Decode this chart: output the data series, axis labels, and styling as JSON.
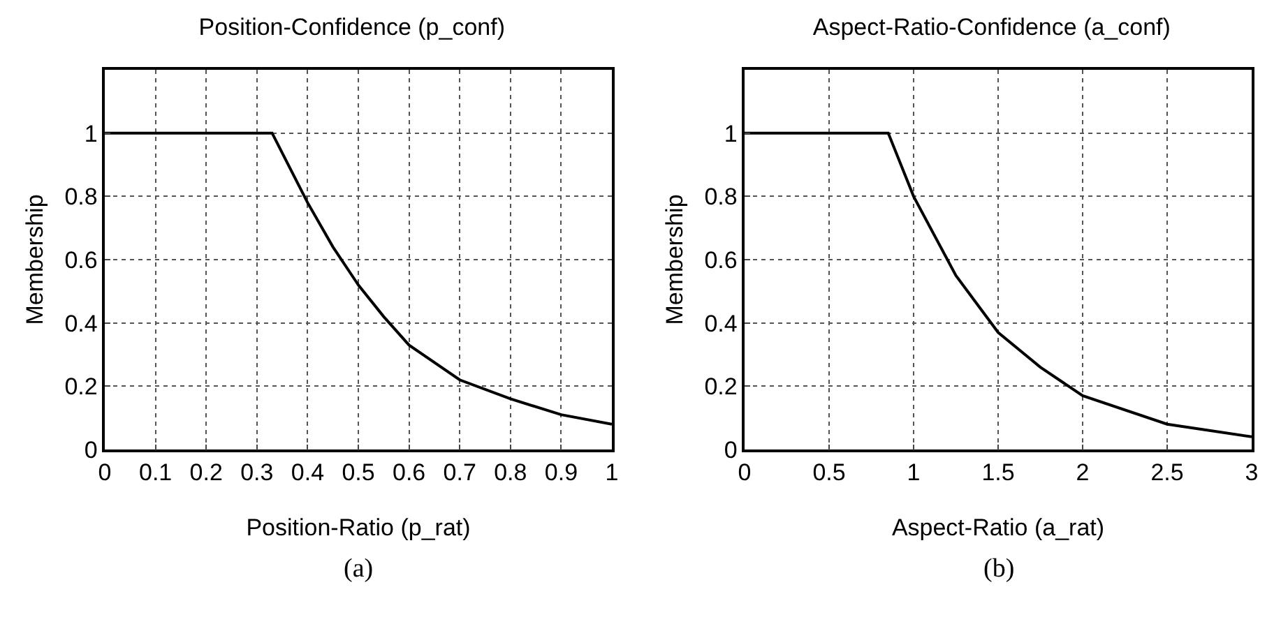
{
  "chart_data": [
    {
      "type": "line",
      "title": "Position-Confidence (p_conf)",
      "xlabel": "Position-Ratio (p_rat)",
      "ylabel": "Membership",
      "annotations": [
        "(a)"
      ],
      "x": [
        0,
        0.33,
        0.4,
        0.45,
        0.5,
        0.55,
        0.6,
        0.7,
        0.8,
        0.9,
        1
      ],
      "series": [
        {
          "color": "#000000",
          "values": [
            1,
            1,
            0.78,
            0.64,
            0.52,
            0.42,
            0.33,
            0.22,
            0.16,
            0.11,
            0.08
          ]
        }
      ],
      "xlim": [
        0,
        1
      ],
      "xticks": [
        0,
        0.1,
        0.2,
        0.3,
        0.4,
        0.5,
        0.6,
        0.7,
        0.8,
        0.9,
        1
      ],
      "ylim": [
        0,
        1.2
      ],
      "yticks": [
        0,
        0.2,
        0.4,
        0.6,
        0.8,
        1
      ],
      "grid": true,
      "line_style": "solid"
    },
    {
      "type": "line",
      "title": "Aspect-Ratio-Confidence (a_conf)",
      "xlabel": "Aspect-Ratio (a_rat)",
      "ylabel": "Membership",
      "annotations": [
        "(b)"
      ],
      "x": [
        0,
        0.85,
        1,
        1.25,
        1.5,
        1.75,
        2,
        2.5,
        3
      ],
      "series": [
        {
          "color": "#000000",
          "values": [
            1,
            1,
            0.8,
            0.55,
            0.37,
            0.26,
            0.17,
            0.08,
            0.04
          ]
        }
      ],
      "xlim": [
        0,
        3
      ],
      "xticks": [
        0,
        0.5,
        1,
        1.5,
        2,
        2.5,
        3
      ],
      "ylim": [
        0,
        1.2
      ],
      "yticks": [
        0,
        0.2,
        0.4,
        0.6,
        0.8,
        1
      ],
      "grid": true,
      "line_style": "solid"
    }
  ]
}
